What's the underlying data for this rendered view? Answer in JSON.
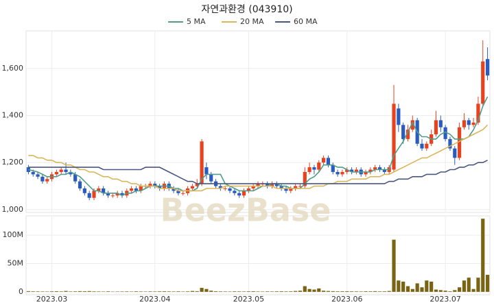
{
  "chart_data": {
    "type": "candlestick",
    "title": "자연과환경 (043910)",
    "watermark": "BeezBase",
    "up_color": "#e8411e",
    "down_color": "#2a5bbf",
    "grid": true,
    "categories": [
      null,
      null,
      null,
      null,
      null,
      "2023.03",
      null,
      null,
      null,
      null,
      null,
      null,
      null,
      null,
      null,
      null,
      null,
      null,
      null,
      null,
      null,
      null,
      null,
      null,
      null,
      null,
      null,
      "2023.04",
      null,
      null,
      null,
      null,
      null,
      null,
      null,
      null,
      null,
      null,
      null,
      null,
      null,
      null,
      null,
      null,
      null,
      null,
      null,
      "2023.05",
      null,
      null,
      null,
      null,
      null,
      null,
      null,
      null,
      null,
      null,
      null,
      null,
      null,
      null,
      null,
      null,
      null,
      null,
      null,
      null,
      "2023.06",
      null,
      null,
      null,
      null,
      null,
      null,
      null,
      null,
      null,
      null,
      null,
      null,
      null,
      null,
      null,
      null,
      null,
      null,
      null,
      null,
      "2023.07",
      null,
      null,
      null,
      null,
      null,
      null,
      null,
      null,
      null
    ],
    "ohlc": [
      [
        1180,
        1190,
        1150,
        1160
      ],
      [
        1160,
        1170,
        1140,
        1150
      ],
      [
        1150,
        1160,
        1130,
        1140
      ],
      [
        1140,
        1150,
        1110,
        1120
      ],
      [
        1120,
        1140,
        1110,
        1130
      ],
      [
        1130,
        1160,
        1120,
        1150
      ],
      [
        1150,
        1170,
        1140,
        1160
      ],
      [
        1160,
        1180,
        1150,
        1170
      ],
      [
        1170,
        1200,
        1150,
        1160
      ],
      [
        1160,
        1170,
        1140,
        1150
      ],
      [
        1150,
        1160,
        1110,
        1120
      ],
      [
        1120,
        1130,
        1080,
        1090
      ],
      [
        1090,
        1100,
        1060,
        1070
      ],
      [
        1070,
        1080,
        1040,
        1050
      ],
      [
        1050,
        1090,
        1040,
        1080
      ],
      [
        1080,
        1100,
        1070,
        1090
      ],
      [
        1090,
        1100,
        1060,
        1070
      ],
      [
        1070,
        1080,
        1050,
        1060
      ],
      [
        1060,
        1070,
        1050,
        1060
      ],
      [
        1060,
        1080,
        1050,
        1070
      ],
      [
        1070,
        1080,
        1050,
        1060
      ],
      [
        1060,
        1090,
        1050,
        1080
      ],
      [
        1080,
        1100,
        1070,
        1090
      ],
      [
        1090,
        1100,
        1070,
        1080
      ],
      [
        1080,
        1110,
        1070,
        1100
      ],
      [
        1100,
        1110,
        1090,
        1100
      ],
      [
        1100,
        1120,
        1090,
        1110
      ],
      [
        1110,
        1120,
        1090,
        1100
      ],
      [
        1100,
        1110,
        1080,
        1090
      ],
      [
        1090,
        1120,
        1080,
        1110
      ],
      [
        1110,
        1120,
        1080,
        1090
      ],
      [
        1090,
        1100,
        1070,
        1080
      ],
      [
        1080,
        1090,
        1060,
        1070
      ],
      [
        1070,
        1080,
        1060,
        1070
      ],
      [
        1070,
        1100,
        1060,
        1090
      ],
      [
        1090,
        1110,
        1080,
        1100
      ],
      [
        1100,
        1130,
        1090,
        1110
      ],
      [
        1110,
        1300,
        1100,
        1290
      ],
      [
        1180,
        1200,
        1130,
        1150
      ],
      [
        1150,
        1160,
        1110,
        1120
      ],
      [
        1120,
        1130,
        1090,
        1100
      ],
      [
        1100,
        1110,
        1080,
        1090
      ],
      [
        1090,
        1100,
        1080,
        1090
      ],
      [
        1090,
        1100,
        1070,
        1080
      ],
      [
        1080,
        1090,
        1060,
        1070
      ],
      [
        1070,
        1080,
        1050,
        1060
      ],
      [
        1060,
        1090,
        1050,
        1080
      ],
      [
        1080,
        1100,
        1070,
        1090
      ],
      [
        1090,
        1110,
        1080,
        1100
      ],
      [
        1100,
        1120,
        1090,
        1110
      ],
      [
        1110,
        1120,
        1100,
        1110
      ],
      [
        1110,
        1120,
        1090,
        1100
      ],
      [
        1100,
        1120,
        1090,
        1110
      ],
      [
        1110,
        1120,
        1090,
        1100
      ],
      [
        1100,
        1110,
        1080,
        1090
      ],
      [
        1090,
        1100,
        1070,
        1080
      ],
      [
        1080,
        1100,
        1070,
        1090
      ],
      [
        1090,
        1110,
        1080,
        1100
      ],
      [
        1100,
        1110,
        1090,
        1100
      ],
      [
        1100,
        1180,
        1090,
        1160
      ],
      [
        1160,
        1200,
        1150,
        1180
      ],
      [
        1180,
        1190,
        1150,
        1170
      ],
      [
        1170,
        1210,
        1160,
        1200
      ],
      [
        1200,
        1230,
        1190,
        1220
      ],
      [
        1220,
        1230,
        1180,
        1190
      ],
      [
        1190,
        1200,
        1150,
        1160
      ],
      [
        1160,
        1170,
        1140,
        1150
      ],
      [
        1150,
        1170,
        1140,
        1160
      ],
      [
        1160,
        1180,
        1150,
        1170
      ],
      [
        1170,
        1180,
        1150,
        1160
      ],
      [
        1160,
        1180,
        1150,
        1170
      ],
      [
        1170,
        1180,
        1140,
        1150
      ],
      [
        1150,
        1170,
        1140,
        1160
      ],
      [
        1160,
        1180,
        1150,
        1170
      ],
      [
        1170,
        1190,
        1160,
        1180
      ],
      [
        1180,
        1190,
        1160,
        1170
      ],
      [
        1170,
        1180,
        1150,
        1160
      ],
      [
        1160,
        1190,
        1150,
        1180
      ],
      [
        1170,
        1530,
        1160,
        1450
      ],
      [
        1430,
        1450,
        1330,
        1360
      ],
      [
        1360,
        1370,
        1280,
        1300
      ],
      [
        1300,
        1360,
        1290,
        1340
      ],
      [
        1340,
        1400,
        1330,
        1380
      ],
      [
        1380,
        1390,
        1270,
        1280
      ],
      [
        1280,
        1300,
        1250,
        1260
      ],
      [
        1260,
        1290,
        1250,
        1280
      ],
      [
        1280,
        1340,
        1270,
        1320
      ],
      [
        1320,
        1420,
        1310,
        1380
      ],
      [
        1380,
        1400,
        1330,
        1350
      ],
      [
        1350,
        1360,
        1290,
        1300
      ],
      [
        1300,
        1310,
        1250,
        1260
      ],
      [
        1260,
        1270,
        1190,
        1220
      ],
      [
        1220,
        1370,
        1210,
        1350
      ],
      [
        1350,
        1410,
        1340,
        1380
      ],
      [
        1380,
        1390,
        1340,
        1360
      ],
      [
        1360,
        1390,
        1350,
        1370
      ],
      [
        1370,
        1480,
        1360,
        1450
      ],
      [
        1450,
        1720,
        1440,
        1630
      ],
      [
        1640,
        1690,
        1550,
        1570
      ]
    ],
    "series": [
      {
        "name": "5 MA",
        "color": "#4f9c8a",
        "values": [
          1170,
          1165,
          1160,
          1150,
          1140,
          1140,
          1140,
          1150,
          1150,
          1160,
          1150,
          1140,
          1120,
          1100,
          1080,
          1080,
          1070,
          1070,
          1070,
          1070,
          1060,
          1070,
          1070,
          1080,
          1080,
          1090,
          1100,
          1100,
          1100,
          1100,
          1100,
          1090,
          1090,
          1080,
          1080,
          1080,
          1090,
          1130,
          1150,
          1150,
          1150,
          1150,
          1110,
          1100,
          1090,
          1080,
          1080,
          1080,
          1080,
          1090,
          1100,
          1100,
          1110,
          1110,
          1100,
          1100,
          1090,
          1090,
          1090,
          1110,
          1130,
          1140,
          1160,
          1190,
          1190,
          1190,
          1180,
          1180,
          1170,
          1160,
          1160,
          1160,
          1160,
          1160,
          1170,
          1170,
          1170,
          1170,
          1230,
          1260,
          1290,
          1330,
          1370,
          1330,
          1310,
          1310,
          1300,
          1300,
          1320,
          1330,
          1320,
          1300,
          1300,
          1300,
          1310,
          1340,
          1380,
          1440,
          1480
        ]
      },
      {
        "name": "20 MA",
        "color": "#d9b65a",
        "values": [
          1230,
          1230,
          1220,
          1220,
          1210,
          1210,
          1200,
          1200,
          1190,
          1190,
          1180,
          1170,
          1170,
          1160,
          1160,
          1150,
          1140,
          1140,
          1130,
          1130,
          1120,
          1120,
          1110,
          1110,
          1100,
          1100,
          1100,
          1100,
          1090,
          1090,
          1090,
          1090,
          1080,
          1080,
          1080,
          1080,
          1080,
          1080,
          1090,
          1090,
          1090,
          1090,
          1100,
          1100,
          1100,
          1100,
          1100,
          1100,
          1100,
          1100,
          1100,
          1100,
          1100,
          1090,
          1090,
          1090,
          1090,
          1090,
          1090,
          1090,
          1090,
          1100,
          1100,
          1100,
          1110,
          1110,
          1120,
          1120,
          1120,
          1130,
          1130,
          1130,
          1130,
          1140,
          1140,
          1140,
          1150,
          1150,
          1160,
          1170,
          1180,
          1190,
          1200,
          1210,
          1220,
          1220,
          1230,
          1240,
          1250,
          1260,
          1270,
          1280,
          1290,
          1300,
          1310,
          1320,
          1330,
          1340,
          1360
        ]
      },
      {
        "name": "60 MA",
        "color": "#4a5580",
        "values": [
          1180,
          1180,
          1180,
          1180,
          1180,
          1180,
          1180,
          1180,
          1180,
          1180,
          1180,
          1180,
          1180,
          1180,
          1180,
          1180,
          1170,
          1170,
          1170,
          1170,
          1170,
          1170,
          1170,
          1170,
          1170,
          1180,
          1180,
          1180,
          1180,
          1170,
          1160,
          1150,
          1140,
          1130,
          1120,
          1120,
          1110,
          1110,
          1110,
          1110,
          1110,
          1110,
          1110,
          1110,
          1110,
          1110,
          1110,
          1110,
          1110,
          1110,
          1110,
          1110,
          1110,
          1110,
          1110,
          1110,
          1110,
          1110,
          1110,
          1110,
          1110,
          1110,
          1110,
          1110,
          1110,
          1110,
          1110,
          1110,
          1110,
          1110,
          1110,
          1110,
          1110,
          1110,
          1110,
          1110,
          1110,
          1120,
          1120,
          1130,
          1130,
          1130,
          1140,
          1140,
          1140,
          1150,
          1150,
          1150,
          1160,
          1160,
          1170,
          1170,
          1180,
          1180,
          1190,
          1190,
          1200,
          1200,
          1210
        ]
      }
    ],
    "ylim": [
      988,
      1760
    ],
    "yticks": [
      {
        "value": 1000,
        "label": "1,000"
      },
      {
        "value": 1200,
        "label": "1,200"
      },
      {
        "value": 1400,
        "label": "1,400"
      },
      {
        "value": 1600,
        "label": "1,600"
      }
    ],
    "volume": {
      "type": "bar",
      "color": "#7a6414",
      "values": [
        1200000,
        900000,
        800000,
        700000,
        600000,
        900000,
        1100000,
        800000,
        1500000,
        700000,
        900000,
        1200000,
        1000000,
        1300000,
        800000,
        700000,
        600000,
        900000,
        500000,
        600000,
        700000,
        800000,
        600000,
        900000,
        700000,
        600000,
        800000,
        700000,
        900000,
        1000000,
        800000,
        700000,
        900000,
        600000,
        800000,
        1500000,
        1200000,
        7000000,
        5000000,
        2000000,
        1000000,
        800000,
        700000,
        600000,
        900000,
        800000,
        700000,
        900000,
        1100000,
        700000,
        600000,
        800000,
        700000,
        900000,
        1000000,
        800000,
        900000,
        1500000,
        2000000,
        10000000,
        5000000,
        4000000,
        6000000,
        2000000,
        1500000,
        1200000,
        900000,
        1000000,
        1100000,
        900000,
        800000,
        700000,
        1000000,
        900000,
        1200000,
        800000,
        900000,
        1500000,
        92000000,
        20000000,
        18000000,
        10000000,
        5000000,
        15000000,
        8000000,
        20000000,
        18000000,
        4000000,
        3000000,
        2000000,
        1000000,
        3000000,
        8000000,
        20000000,
        25000000,
        5000000,
        25000000,
        129000000,
        30000000
      ],
      "ylim": [
        -5000000,
        134000000
      ],
      "yticks": [
        0,
        {
          "value": 50000000,
          "label": "50M"
        },
        {
          "value": 100000000,
          "label": "100M"
        }
      ]
    }
  }
}
